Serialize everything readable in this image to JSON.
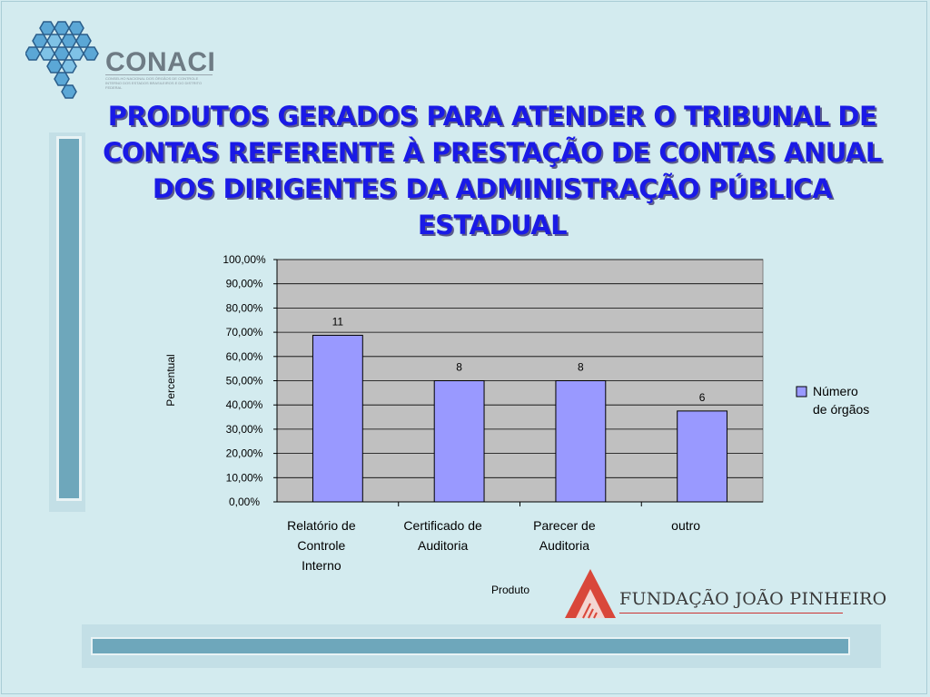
{
  "logo": {
    "name": "CONACI",
    "subtitle": "CONSELHO NACIONAL DOS ÓRGÃOS DE CONTROLE INTERNO DOS ESTADOS BRASILEIROS E DO DISTRITO FEDERAL"
  },
  "slide_title": "PRODUTOS GERADOS PARA ATENDER O TRIBUNAL DE CONTAS REFERENTE À PRESTAÇÃO DE CONTAS ANUAL DOS DIRIGENTES DA ADMINISTRAÇÃO PÚBLICA ESTADUAL",
  "footer_logo": {
    "name": "FUNDAÇÃO JOÃO PINHEIRO"
  },
  "colors": {
    "title": "#1a1ae6",
    "bar": "#9999ff",
    "plot_bg": "#c0c0c0",
    "accent": "#6ea7bb"
  },
  "chart_data": {
    "type": "bar",
    "categories": [
      [
        "Relatório de",
        "Controle",
        "Interno"
      ],
      [
        "Certificado de",
        "Auditoria"
      ],
      [
        "Parecer de",
        "Auditoria"
      ],
      [
        "outro"
      ]
    ],
    "series": [
      {
        "name": "Número de órgãos",
        "values": [
          68.75,
          50.0,
          50.0,
          37.5
        ],
        "data_labels": [
          "11",
          "8",
          "8",
          "6"
        ]
      }
    ],
    "legend_lines": [
      "Número",
      "de órgãos"
    ],
    "xlabel": "Produto",
    "ylabel": "Percentual",
    "ylim": [
      0,
      100
    ],
    "yticks": [
      "0,00%",
      "10,00%",
      "20,00%",
      "30,00%",
      "40,00%",
      "50,00%",
      "60,00%",
      "70,00%",
      "80,00%",
      "90,00%",
      "100,00%"
    ],
    "grid": true,
    "legend_position": "right"
  }
}
